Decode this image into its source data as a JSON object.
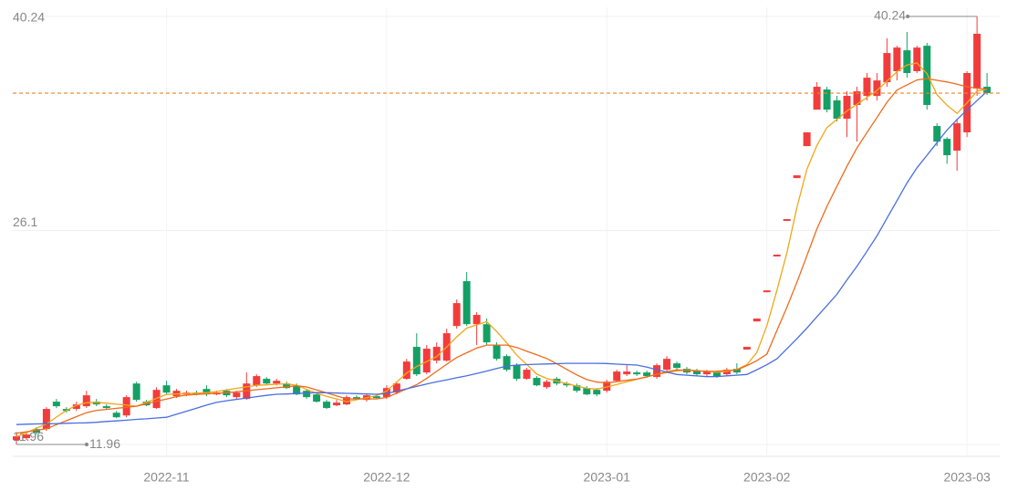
{
  "chart_data": {
    "type": "candlestick",
    "categories": [
      null,
      null,
      null,
      null,
      null,
      null,
      null,
      null,
      null,
      null,
      null,
      null,
      null,
      null,
      null,
      "2022-11",
      null,
      null,
      null,
      null,
      null,
      null,
      null,
      null,
      null,
      null,
      null,
      null,
      null,
      null,
      null,
      null,
      null,
      null,
      null,
      null,
      null,
      "2022-12",
      null,
      null,
      null,
      null,
      null,
      null,
      null,
      null,
      null,
      null,
      null,
      null,
      null,
      null,
      null,
      null,
      null,
      null,
      null,
      null,
      null,
      "2023-01",
      null,
      null,
      null,
      null,
      null,
      null,
      null,
      null,
      null,
      null,
      null,
      null,
      null,
      null,
      null,
      "2023-02",
      null,
      null,
      null,
      null,
      null,
      null,
      null,
      null,
      null,
      null,
      null,
      null,
      null,
      null,
      null,
      null,
      null,
      null,
      null,
      "2023-03",
      null,
      null
    ],
    "open": [
      12.26,
      12.38,
      12.98,
      12.98,
      14.79,
      14.31,
      14.31,
      14.49,
      14.79,
      14.49,
      14.06,
      13.88,
      15.99,
      14.79,
      14.37,
      15.87,
      15.15,
      15.27,
      15.39,
      15.63,
      15.27,
      15.51,
      15.09,
      14.97,
      15.87,
      16.3,
      15.99,
      15.99,
      15.81,
      15.51,
      15.27,
      14.79,
      14.55,
      14.61,
      15.09,
      14.91,
      15.15,
      15.09,
      15.39,
      16.3,
      18.41,
      16.72,
      17.5,
      17.5,
      19.79,
      22.75,
      19.91,
      19.91,
      18.53,
      17.8,
      17.2,
      16.3,
      16.36,
      15.75,
      16.3,
      15.99,
      15.87,
      15.69,
      15.57,
      15.51,
      16.17,
      16.6,
      16.72,
      16.72,
      16.42,
      16.9,
      17.32,
      16.96,
      16.84,
      16.6,
      16.72,
      16.6,
      16.96,
      18.23,
      20.09,
      22.02,
      24.38,
      26.73,
      29.56,
      31.67,
      34.08,
      35.41,
      34.69,
      33.48,
      34.39,
      34.99,
      34.99,
      35.89,
      36.62,
      38.0,
      36.62,
      38.3,
      33.0,
      32.15,
      31.37,
      32.58,
      35.47,
      35.59
    ],
    "close": [
      12.5,
      12.62,
      12.74,
      14.31,
      14.49,
      14.18,
      14.61,
      15.21,
      14.61,
      14.37,
      13.76,
      15.09,
      14.91,
      14.55,
      15.57,
      15.39,
      15.51,
      15.39,
      15.27,
      15.27,
      15.39,
      15.21,
      15.39,
      15.99,
      16.48,
      15.99,
      16.17,
      15.69,
      15.27,
      15.09,
      14.79,
      14.37,
      14.73,
      15.09,
      14.97,
      15.21,
      15.03,
      15.69,
      15.99,
      17.44,
      16.6,
      18.29,
      18.41,
      19.31,
      21.3,
      19.91,
      20.52,
      18.71,
      17.62,
      16.9,
      16.3,
      16.9,
      15.87,
      16.11,
      15.99,
      15.87,
      15.51,
      15.27,
      15.27,
      16.11,
      16.78,
      16.78,
      16.6,
      16.48,
      17.2,
      17.62,
      17.02,
      16.72,
      16.6,
      16.78,
      16.48,
      16.9,
      16.72,
      18.41,
      20.28,
      22.14,
      24.5,
      26.85,
      29.74,
      32.58,
      35.59,
      34.08,
      33.48,
      34.99,
      35.29,
      36.19,
      36.01,
      37.82,
      38.18,
      36.5,
      38.18,
      34.39,
      31.97,
      31.07,
      33.18,
      36.5,
      39.09,
      35.17
    ],
    "low": [
      11.96,
      12.26,
      12.62,
      12.86,
      14.37,
      14.06,
      14.18,
      14.37,
      14.49,
      14.31,
      13.7,
      13.76,
      14.79,
      14.49,
      14.31,
      15.27,
      15.03,
      15.15,
      15.21,
      15.15,
      15.21,
      15.09,
      14.97,
      14.91,
      15.75,
      15.87,
      15.87,
      15.63,
      15.21,
      14.97,
      14.73,
      14.31,
      14.49,
      14.55,
      14.91,
      14.79,
      14.97,
      14.97,
      15.27,
      16.24,
      16.48,
      16.6,
      17.32,
      17.44,
      19.61,
      19.79,
      18.53,
      18.53,
      17.5,
      16.78,
      16.17,
      16.24,
      15.81,
      15.63,
      15.87,
      15.75,
      15.39,
      15.21,
      15.15,
      15.39,
      16.11,
      16.48,
      16.48,
      16.36,
      16.3,
      16.78,
      16.9,
      16.6,
      16.48,
      16.48,
      16.36,
      16.48,
      16.6,
      18.23,
      20.09,
      22.02,
      24.38,
      26.73,
      29.56,
      31.67,
      34.08,
      33.9,
      33.3,
      32.27,
      31.97,
      34.69,
      34.69,
      35.59,
      36.01,
      36.19,
      36.5,
      34.08,
      31.67,
      30.5,
      30.04,
      32.27,
      34.99,
      35.05
    ],
    "high": [
      12.68,
      12.74,
      13.1,
      14.43,
      14.97,
      14.43,
      14.79,
      15.51,
      14.97,
      14.61,
      14.18,
      15.21,
      16.11,
      14.91,
      15.75,
      16.17,
      15.63,
      15.51,
      15.51,
      15.87,
      15.51,
      15.63,
      15.51,
      16.72,
      16.6,
      16.42,
      16.3,
      16.11,
      15.99,
      15.63,
      15.39,
      14.91,
      14.91,
      15.21,
      15.21,
      15.27,
      15.27,
      15.87,
      16.11,
      17.62,
      19.31,
      18.53,
      18.71,
      19.61,
      21.54,
      23.35,
      20.7,
      20.28,
      18.71,
      17.92,
      17.32,
      17.02,
      16.48,
      16.24,
      16.42,
      16.11,
      15.99,
      15.81,
      15.69,
      16.24,
      16.9,
      17.2,
      16.84,
      16.84,
      17.32,
      17.8,
      17.44,
      17.08,
      16.96,
      16.9,
      16.84,
      17.02,
      17.32,
      18.41,
      20.28,
      22.14,
      24.5,
      26.85,
      29.74,
      32.58,
      35.89,
      35.59,
      34.99,
      35.29,
      35.59,
      36.5,
      36.5,
      38.79,
      38.3,
      39.21,
      38.3,
      38.49,
      33.18,
      32.27,
      33.48,
      36.62,
      40.24,
      36.5
    ],
    "up_color": "#f23c3c",
    "down_color": "#14a064",
    "last_line_color": "#e8862a",
    "ma_lines": [
      {
        "color": "#f2a618",
        "values": [
          12.48,
          12.75,
          13.03,
          13.32,
          13.77,
          14.21,
          14.55,
          14.72,
          14.75,
          14.69,
          14.62,
          14.56,
          14.49,
          14.75,
          15.01,
          15.27,
          15.3,
          15.32,
          15.35,
          15.38,
          15.46,
          15.56,
          15.67,
          15.77,
          15.87,
          15.9,
          15.94,
          15.97,
          15.87,
          15.6,
          15.34,
          15.14,
          14.97,
          14.79,
          14.92,
          15.05,
          15.19,
          15.49,
          16.09,
          16.68,
          17.11,
          17.44,
          17.77,
          18.4,
          19.07,
          19.65,
          19.86,
          20.07,
          19.42,
          18.68,
          17.86,
          17.25,
          16.61,
          16.33,
          16.15,
          15.98,
          15.82,
          15.67,
          15.62,
          15.76,
          15.93,
          16.1,
          16.27,
          16.43,
          16.6,
          16.71,
          16.82,
          16.89,
          16.84,
          16.79,
          16.73,
          16.8,
          16.92,
          17.23,
          18.05,
          19.82,
          22.14,
          24.63,
          27.63,
          30.14,
          31.72,
          32.9,
          33.43,
          33.99,
          34.44,
          34.88,
          35.35,
          35.96,
          36.59,
          37.03,
          37.16,
          36.46,
          35.07,
          34.37,
          33.83,
          34.53,
          35.3,
          35.41
        ]
      },
      {
        "color": "#ee6a1c",
        "values": [
          12.71,
          12.8,
          12.9,
          13.0,
          13.27,
          13.53,
          13.8,
          14.06,
          14.22,
          14.28,
          14.35,
          14.42,
          14.49,
          14.65,
          14.81,
          14.96,
          15.12,
          15.23,
          15.27,
          15.31,
          15.34,
          15.38,
          15.44,
          15.51,
          15.58,
          15.64,
          15.71,
          15.77,
          15.84,
          15.76,
          15.56,
          15.37,
          15.17,
          14.97,
          14.97,
          14.97,
          14.97,
          15.07,
          15.35,
          15.63,
          15.91,
          16.33,
          16.79,
          17.26,
          17.71,
          18.02,
          18.33,
          18.53,
          18.53,
          18.53,
          18.37,
          18.12,
          17.89,
          17.64,
          17.29,
          16.92,
          16.56,
          16.25,
          16.08,
          16.03,
          16.11,
          16.2,
          16.28,
          16.43,
          16.6,
          16.76,
          16.89,
          16.86,
          16.83,
          16.79,
          16.8,
          16.85,
          16.88,
          17.17,
          17.5,
          17.94,
          19.49,
          21.03,
          22.68,
          24.43,
          26.21,
          27.69,
          29.02,
          30.34,
          31.55,
          32.57,
          33.56,
          34.57,
          35.38,
          35.71,
          36.04,
          36.13,
          36.02,
          35.91,
          35.76,
          35.59,
          35.5,
          35.41
        ]
      },
      {
        "color": "#4a6ee0",
        "values": [
          13.28,
          13.3,
          13.32,
          13.33,
          13.34,
          13.36,
          13.38,
          13.39,
          13.43,
          13.48,
          13.52,
          13.57,
          13.62,
          13.66,
          13.71,
          13.76,
          13.96,
          14.16,
          14.36,
          14.56,
          14.74,
          14.85,
          14.94,
          15.03,
          15.12,
          15.21,
          15.28,
          15.3,
          15.33,
          15.36,
          15.39,
          15.38,
          15.36,
          15.34,
          15.32,
          15.3,
          15.28,
          15.33,
          15.49,
          15.64,
          15.8,
          15.96,
          16.1,
          16.23,
          16.37,
          16.5,
          16.65,
          16.81,
          16.98,
          17.14,
          17.21,
          17.24,
          17.26,
          17.28,
          17.3,
          17.32,
          17.32,
          17.32,
          17.32,
          17.31,
          17.27,
          17.24,
          17.21,
          17.07,
          16.9,
          16.74,
          16.59,
          16.54,
          16.49,
          16.44,
          16.45,
          16.5,
          16.54,
          16.59,
          16.9,
          17.23,
          17.62,
          18.28,
          18.95,
          19.65,
          20.4,
          21.14,
          21.88,
          22.83,
          23.74,
          24.73,
          25.74,
          26.91,
          28.07,
          29.23,
          30.24,
          31.07,
          31.9,
          32.73,
          33.43,
          34.07,
          34.68,
          35.29
        ]
      }
    ],
    "ylim": [
      11.18,
      40.84
    ],
    "yticks": [
      11.96,
      26.1,
      40.24
    ],
    "grid": true
  }
}
